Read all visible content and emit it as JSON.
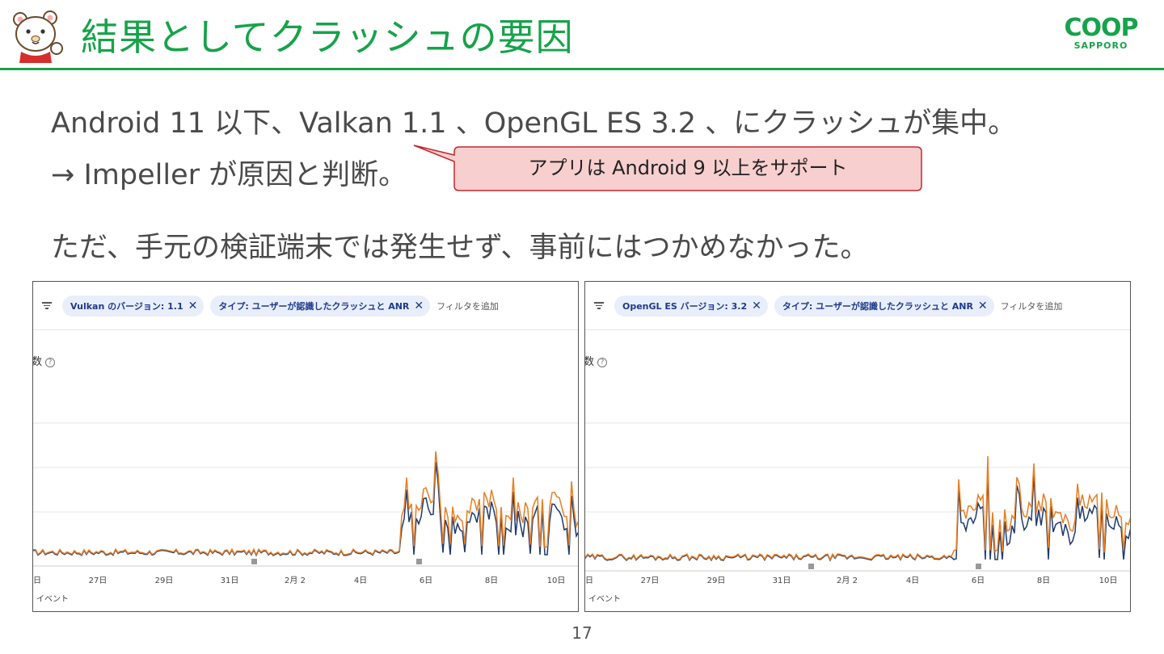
{
  "header": {
    "title": "結果としてクラッシュの要因",
    "logo_main": "COOP",
    "logo_sub": "SAPPORO"
  },
  "body": {
    "line1": "Android 11 以下、Valkan 1.1 、OpenGL ES 3.2 、にクラッシュが集中。",
    "line2": "→ Impeller が原因と判断。",
    "line3": "ただ、手元の検証端末では発生せず、事前にはつかめなかった。"
  },
  "callout": {
    "text": "アプリは Android 9 以上をサポート"
  },
  "panels": [
    {
      "chips": [
        "Vulkan のバージョン: 1.1",
        "タイプ: ユーザーが認識したクラッシュと ANR"
      ],
      "add_filter": "フィルタを追加",
      "axis_title": "数",
      "x_ticks": [
        "日",
        "27日",
        "29日",
        "31日",
        "2月 2",
        "4日",
        "6日",
        "8日",
        "10日"
      ],
      "events_label": "イベント"
    },
    {
      "chips": [
        "OpenGL ES バージョン: 3.2",
        "タイプ: ユーザーが認識したクラッシュと ANR"
      ],
      "add_filter": "フィルタを追加",
      "axis_title": "数",
      "x_ticks": [
        "日",
        "27日",
        "29日",
        "31日",
        "2月 2",
        "4日",
        "6日",
        "8日",
        "10日"
      ],
      "events_label": "イベント"
    }
  ],
  "colors": {
    "accent": "#16a34a",
    "callout_fill": "#f8cfcf",
    "callout_border": "#c0282d",
    "series_orange": "#e67e22",
    "series_navy": "#1e3a6e"
  },
  "page_number": "17"
}
